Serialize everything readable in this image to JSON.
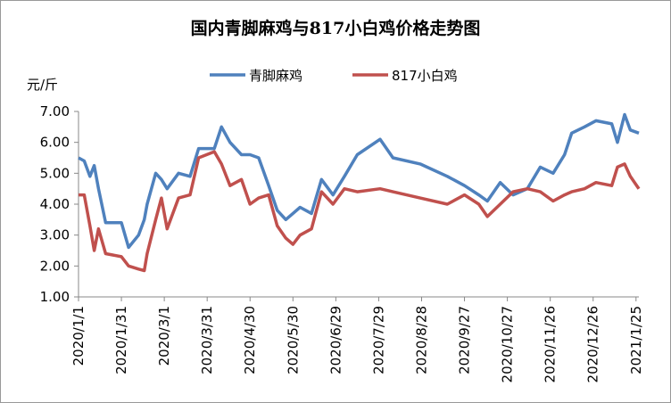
{
  "chart_data": {
    "type": "line",
    "title": "国内青脚麻鸡与817小白鸡价格走势图",
    "y_label": "元/斤",
    "x": [
      "2020/1/1",
      "2020/1/5",
      "2020/1/9",
      "2020/1/12",
      "2020/1/15",
      "2020/1/20",
      "2020/1/31",
      "2020/2/5",
      "2020/2/12",
      "2020/2/16",
      "2020/2/18",
      "2020/2/24",
      "2020/2/28",
      "2020/3/3",
      "2020/3/11",
      "2020/3/19",
      "2020/3/25",
      "2020/4/5",
      "2020/4/10",
      "2020/4/16",
      "2020/4/24",
      "2020/4/30",
      "2020/5/6",
      "2020/5/13",
      "2020/5/19",
      "2020/5/25",
      "2020/5/30",
      "2020/6/4",
      "2020/6/12",
      "2020/6/19",
      "2020/6/27",
      "2020/7/5",
      "2020/7/14",
      "2020/7/30",
      "2020/8/8",
      "2020/8/27",
      "2020/9/15",
      "2020/9/27",
      "2020/10/7",
      "2020/10/13",
      "2020/10/22",
      "2020/10/31",
      "2020/11/10",
      "2020/11/19",
      "2020/11/28",
      "2020/12/6",
      "2020/12/11",
      "2020/12/20",
      "2020/12/28",
      "2021/1/8",
      "2021/1/12",
      "2021/1/17",
      "2021/1/21",
      "2021/1/27"
    ],
    "series": [
      {
        "name": "青脚麻鸡",
        "color": "#4f81bd",
        "values": [
          5.5,
          5.4,
          4.9,
          5.25,
          4.5,
          3.4,
          3.4,
          2.6,
          3.0,
          3.5,
          4.0,
          5.0,
          4.8,
          4.5,
          5.0,
          4.9,
          5.8,
          5.8,
          6.5,
          6.0,
          5.6,
          5.6,
          5.5,
          4.6,
          3.8,
          3.5,
          3.7,
          3.9,
          3.7,
          4.8,
          4.3,
          4.9,
          5.6,
          6.1,
          5.5,
          5.3,
          4.9,
          4.6,
          4.3,
          4.1,
          4.7,
          4.3,
          4.5,
          5.2,
          5.0,
          5.6,
          6.3,
          6.5,
          6.7,
          6.6,
          6.0,
          6.9,
          6.4,
          6.3
        ]
      },
      {
        "name": "817小白鸡",
        "color": "#c0504d",
        "values": [
          4.3,
          4.3,
          3.3,
          2.5,
          3.2,
          2.4,
          2.3,
          2.0,
          1.9,
          1.85,
          2.4,
          3.5,
          4.2,
          3.2,
          4.2,
          4.3,
          5.5,
          5.7,
          5.3,
          4.6,
          4.8,
          4.0,
          4.2,
          4.3,
          3.3,
          2.9,
          2.7,
          3.0,
          3.2,
          4.4,
          4.0,
          4.5,
          4.4,
          4.5,
          4.4,
          4.2,
          4.0,
          4.3,
          4.0,
          3.6,
          4.0,
          4.4,
          4.5,
          4.4,
          4.1,
          4.3,
          4.4,
          4.5,
          4.7,
          4.6,
          5.2,
          5.3,
          4.9,
          4.5
        ]
      }
    ],
    "xlim": [
      "2020/1/1",
      "2021/1/27"
    ],
    "xticks": [
      "2020/1/1",
      "2020/1/31",
      "2020/3/1",
      "2020/3/31",
      "2020/4/30",
      "2020/5/30",
      "2020/6/29",
      "2020/7/29",
      "2020/8/28",
      "2020/9/27",
      "2020/10/27",
      "2020/11/26",
      "2020/12/26",
      "2021/1/25"
    ],
    "ylim": [
      1,
      7
    ],
    "yticks": [
      {
        "value": 1,
        "label": "1.00"
      },
      {
        "value": 2,
        "label": "2.00"
      },
      {
        "value": 3,
        "label": "3.00"
      },
      {
        "value": 4,
        "label": "4.00"
      },
      {
        "value": 5,
        "label": "5.00"
      },
      {
        "value": 6,
        "label": "6.00"
      },
      {
        "value": 7,
        "label": "7.00"
      }
    ],
    "legend": "top"
  }
}
